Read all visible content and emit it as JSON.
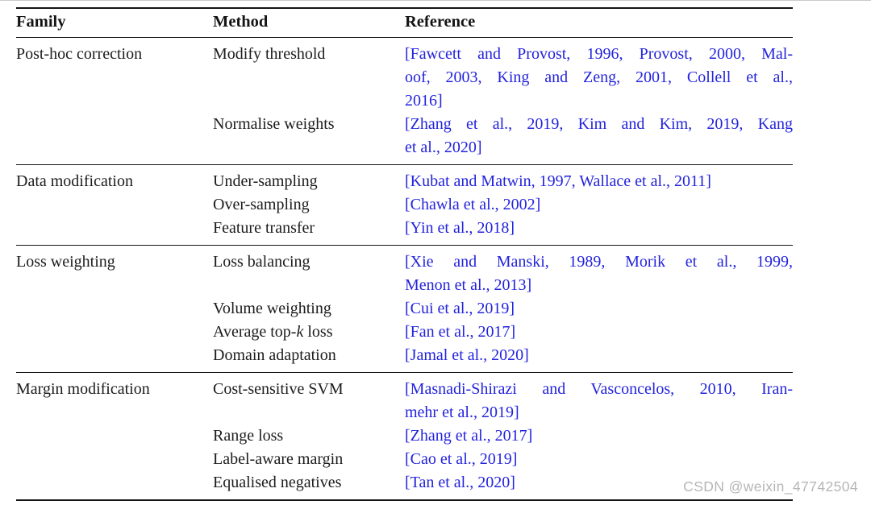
{
  "page": {
    "watermark": "CSDN @weixin_47742504"
  },
  "colors": {
    "citation_blue": "#2323dd",
    "rule_black": "#141414",
    "watermark_gray": "#b6b6b6"
  },
  "table": {
    "headers": {
      "family": "Family",
      "method": "Method",
      "reference": "Reference"
    },
    "groups": [
      {
        "family": "Post-hoc correction",
        "rows": [
          {
            "method": "Modify threshold",
            "reference_lines": [
              "[Fawcett and Provost, 1996, Provost, 2000, Mal-",
              "oof, 2003, King and Zeng, 2001, Collell et al.,",
              "2016]"
            ]
          },
          {
            "method": "Normalise weights",
            "reference_lines": [
              "[Zhang et al., 2019, Kim and Kim, 2019, Kang",
              "et al., 2020]"
            ]
          }
        ]
      },
      {
        "family": "Data modification",
        "rows": [
          {
            "method": "Under-sampling",
            "reference_lines": [
              "[Kubat and Matwin, 1997, Wallace et al., 2011]"
            ]
          },
          {
            "method": "Over-sampling",
            "reference_lines": [
              "[Chawla et al., 2002]"
            ]
          },
          {
            "method": "Feature transfer",
            "reference_lines": [
              "[Yin et al., 2018]"
            ]
          }
        ]
      },
      {
        "family": "Loss weighting",
        "rows": [
          {
            "method": "Loss balancing",
            "reference_lines": [
              "[Xie and Manski, 1989, Morik et al., 1999,",
              "Menon et al., 2013]"
            ]
          },
          {
            "method": "Volume weighting",
            "reference_lines": [
              "[Cui et al., 2019]"
            ]
          },
          {
            "method_parts": {
              "prefix": "Average top-",
              "k": "k",
              "suffix": " loss"
            },
            "reference_lines": [
              "[Fan et al., 2017]"
            ]
          },
          {
            "method": "Domain adaptation",
            "reference_lines": [
              "[Jamal et al., 2020]"
            ]
          }
        ]
      },
      {
        "family": "Margin modification",
        "rows": [
          {
            "method": "Cost-sensitive SVM",
            "reference_lines": [
              "[Masnadi-Shirazi and Vasconcelos, 2010, Iran-",
              "mehr et al., 2019]"
            ]
          },
          {
            "method": "Range loss",
            "reference_lines": [
              "[Zhang et al., 2017]"
            ]
          },
          {
            "method": "Label-aware margin",
            "reference_lines": [
              "[Cao et al., 2019]"
            ]
          },
          {
            "method": "Equalised negatives",
            "reference_lines": [
              "[Tan et al., 2020]"
            ]
          }
        ]
      }
    ]
  }
}
